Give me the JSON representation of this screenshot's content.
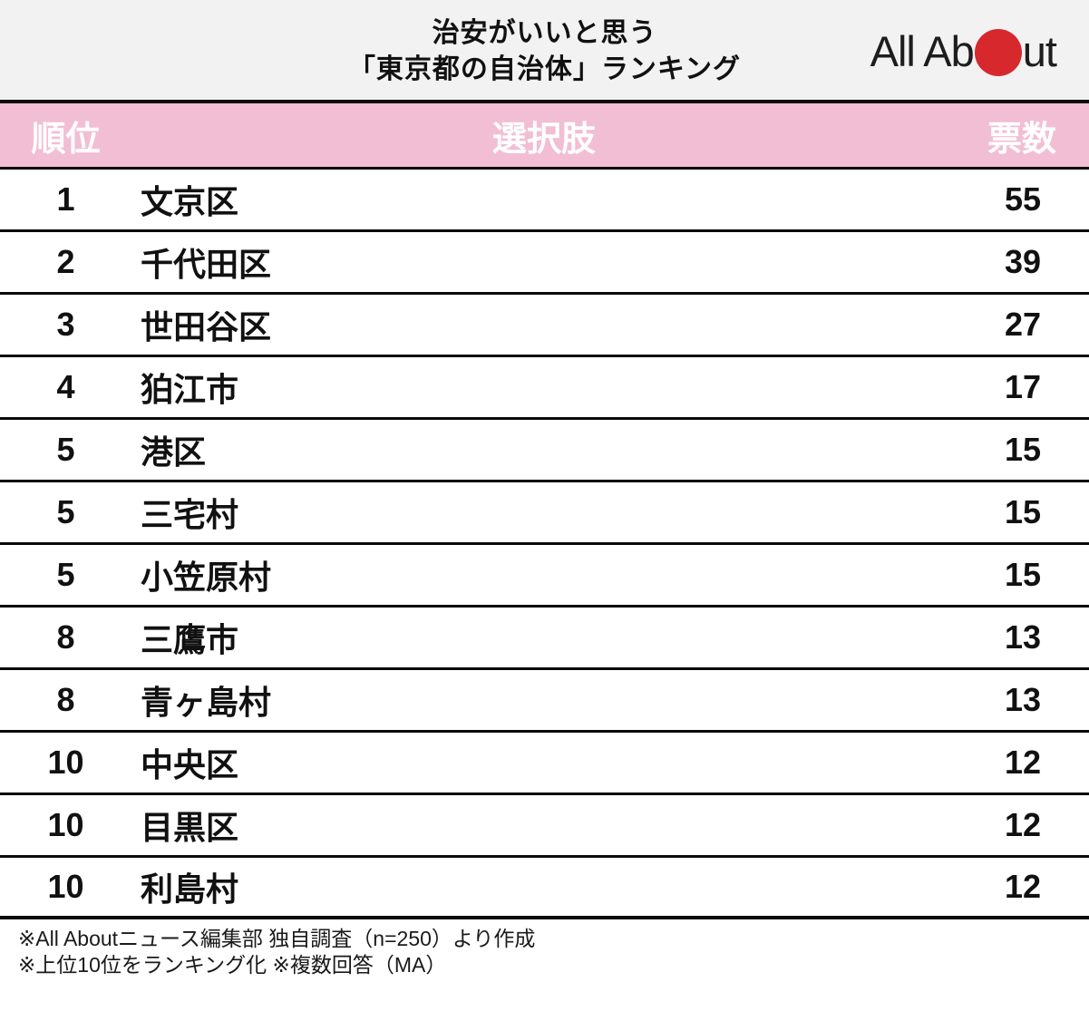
{
  "title": {
    "line1": "治安がいいと思う",
    "line2": "「東京都の自治体」ランキング"
  },
  "logo": {
    "text_before_dot": "All Ab",
    "text_after_dot": "ut"
  },
  "table": {
    "headers": {
      "rank": "順位",
      "choice": "選択肢",
      "votes": "票数"
    },
    "rows": [
      {
        "rank": "1",
        "name": "文京区",
        "votes": "55"
      },
      {
        "rank": "2",
        "name": "千代田区",
        "votes": "39"
      },
      {
        "rank": "3",
        "name": "世田谷区",
        "votes": "27"
      },
      {
        "rank": "4",
        "name": "狛江市",
        "votes": "17"
      },
      {
        "rank": "5",
        "name": "港区",
        "votes": "15"
      },
      {
        "rank": "5",
        "name": "三宅村",
        "votes": "15"
      },
      {
        "rank": "5",
        "name": "小笠原村",
        "votes": "15"
      },
      {
        "rank": "8",
        "name": "三鷹市",
        "votes": "13"
      },
      {
        "rank": "8",
        "name": "青ヶ島村",
        "votes": "13"
      },
      {
        "rank": "10",
        "name": "中央区",
        "votes": "12"
      },
      {
        "rank": "10",
        "name": "目黒区",
        "votes": "12"
      },
      {
        "rank": "10",
        "name": "利島村",
        "votes": "12"
      }
    ]
  },
  "footer": {
    "line1": "※All Aboutニュース編集部 独自調査（n=250）より作成",
    "line2": "※上位10位をランキング化 ※複数回答（MA）"
  },
  "colors": {
    "header_bg": "#f2f2f2",
    "table_head_bg": "#f2bed3",
    "accent_red": "#d7282e",
    "line_black": "#0a0a0a",
    "text_black": "#111111"
  },
  "chart_data": {
    "type": "table",
    "title": "治安がいいと思う「東京都の自治体」ランキング",
    "columns": [
      "順位",
      "選択肢",
      "票数"
    ],
    "categories": [
      "文京区",
      "千代田区",
      "世田谷区",
      "狛江市",
      "港区",
      "三宅村",
      "小笠原村",
      "三鷹市",
      "青ヶ島村",
      "中央区",
      "目黒区",
      "利島村"
    ],
    "ranks": [
      1,
      2,
      3,
      4,
      5,
      5,
      5,
      8,
      8,
      10,
      10,
      10
    ],
    "values": [
      55,
      39,
      27,
      17,
      15,
      15,
      15,
      13,
      13,
      12,
      12,
      12
    ],
    "notes": [
      "※All Aboutニュース編集部 独自調査（n=250）より作成",
      "※上位10位をランキング化 ※複数回答（MA）"
    ],
    "source_brand": "All About"
  }
}
